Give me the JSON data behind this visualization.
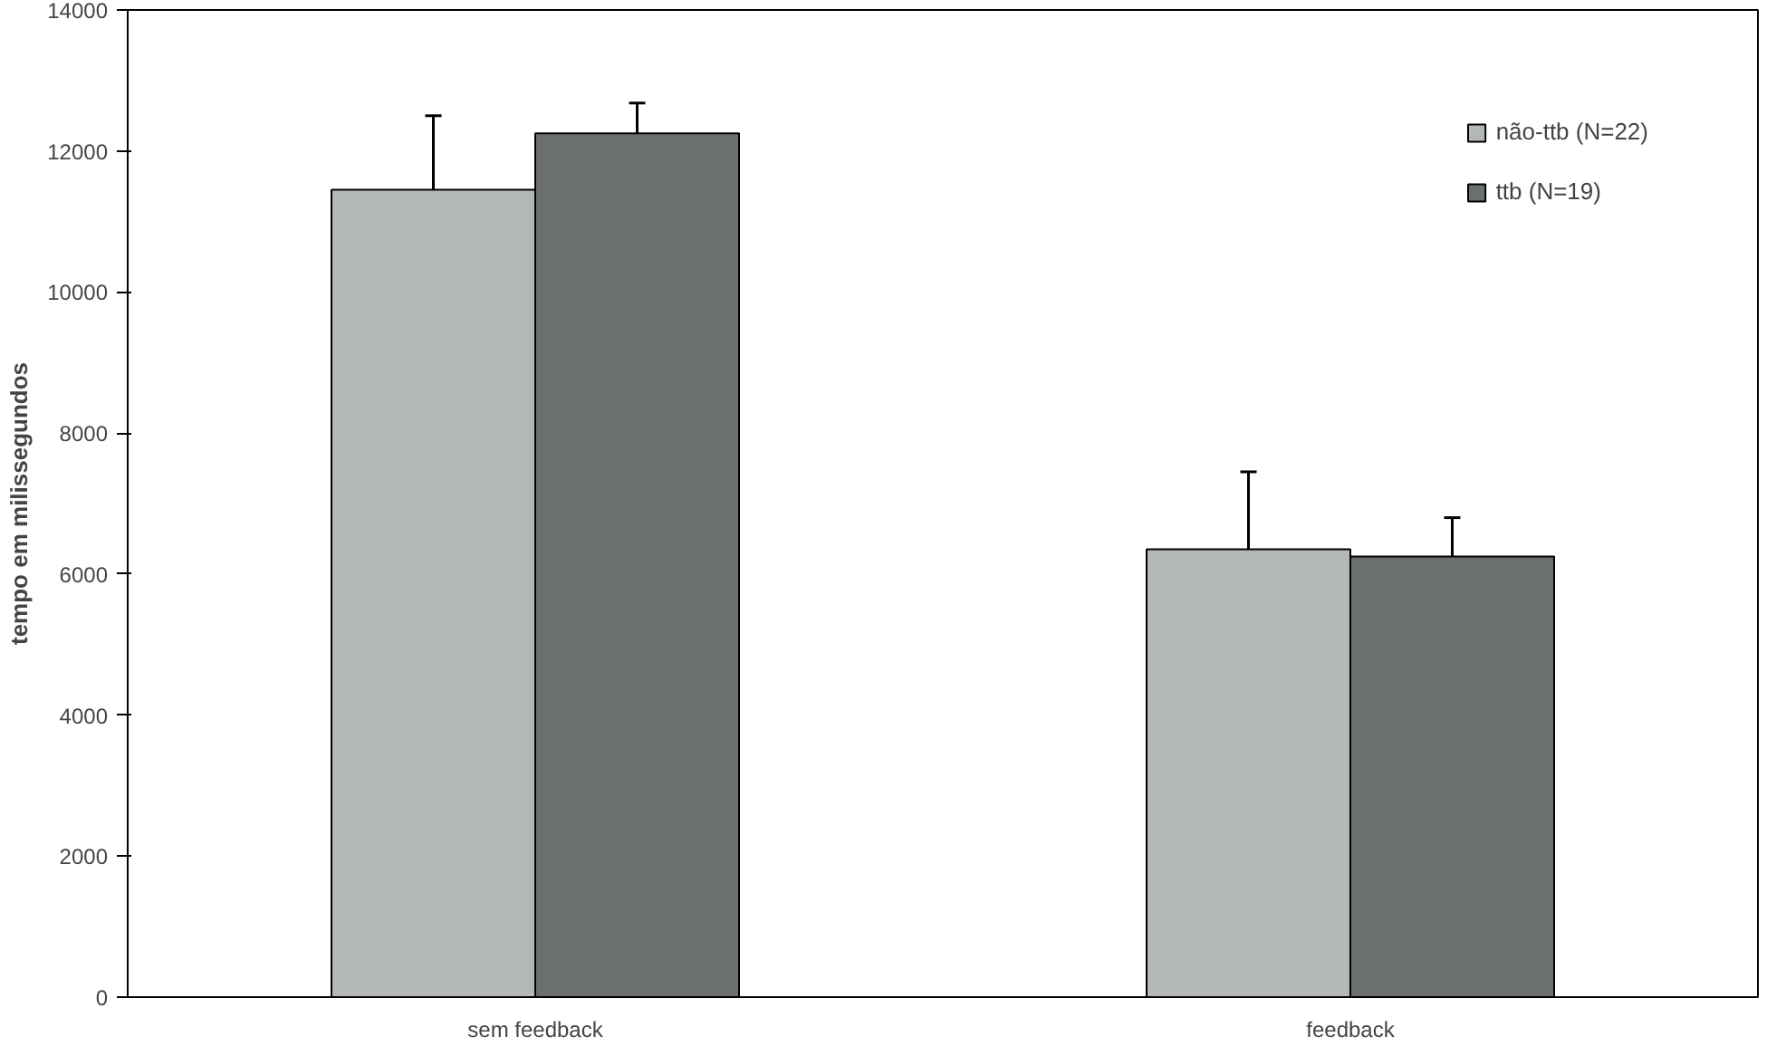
{
  "chart_data": {
    "type": "bar",
    "ylabel": "tempo em milissegundos",
    "categories": [
      "sem feedback",
      "feedback"
    ],
    "series": [
      {
        "name": "não-ttb (N=22)",
        "color": "#b4b8b4",
        "values": [
          11450,
          6350
        ],
        "errors": [
          1050,
          1100
        ]
      },
      {
        "name": "ttb (N=19)",
        "color": "#6c706c",
        "values": [
          12250,
          6250
        ],
        "errors": [
          430,
          550
        ]
      }
    ],
    "ylim": [
      0,
      14000
    ],
    "yticks": [
      0,
      2000,
      4000,
      6000,
      8000,
      10000,
      12000,
      14000
    ],
    "grid": false,
    "legend": "top right"
  }
}
